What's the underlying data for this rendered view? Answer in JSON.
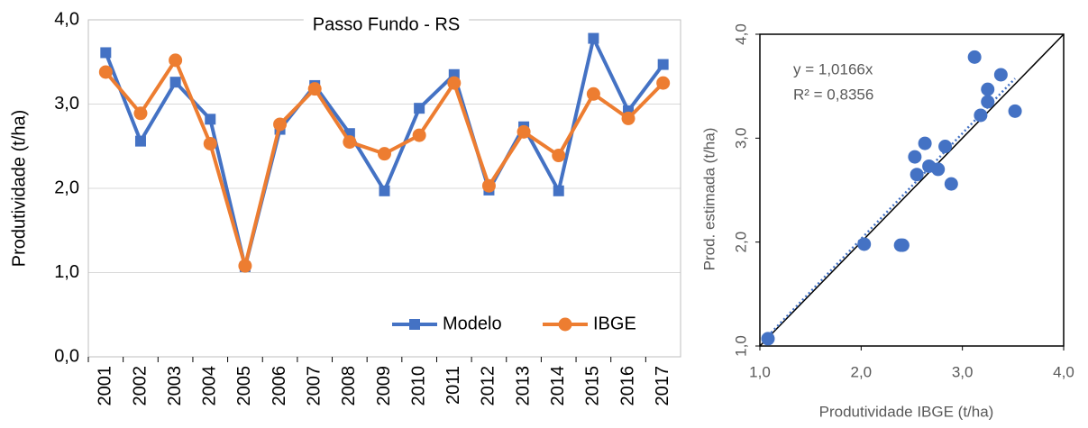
{
  "chart_data": [
    {
      "type": "line",
      "title": "Passo Fundo - RS",
      "y_label": "Produtividade (t/ha)",
      "categories": [
        "2001",
        "2002",
        "2003",
        "2004",
        "2005",
        "2006",
        "2007",
        "2008",
        "2009",
        "2010",
        "2011",
        "2012",
        "2013",
        "2014",
        "2015",
        "2016",
        "2017"
      ],
      "series": [
        {
          "name": "Modelo",
          "color": "#4472c4",
          "marker": "square",
          "values": [
            3.61,
            2.56,
            3.26,
            2.82,
            1.07,
            2.7,
            3.22,
            2.65,
            1.97,
            2.95,
            3.35,
            1.98,
            2.73,
            1.97,
            3.78,
            2.92,
            3.47
          ]
        },
        {
          "name": "IBGE",
          "color": "#ed7d31",
          "marker": "circle",
          "values": [
            3.38,
            2.89,
            3.52,
            2.53,
            1.08,
            2.76,
            3.18,
            2.55,
            2.41,
            2.63,
            3.25,
            2.03,
            2.67,
            2.39,
            3.12,
            2.83,
            3.25
          ]
        }
      ],
      "ylim": [
        0,
        4
      ],
      "yticks": [
        {
          "value": 0,
          "label": "0,0"
        },
        {
          "value": 1,
          "label": "1,0"
        },
        {
          "value": 2,
          "label": "2,0"
        },
        {
          "value": 3,
          "label": "3,0"
        },
        {
          "value": 4,
          "label": "4,0"
        }
      ],
      "grid": true,
      "legend": "bottom-right"
    },
    {
      "type": "scatter",
      "x_label": "Produtividade IBGE (t/ha)",
      "y_label": "Prod. estimada (t/ha)",
      "annotations": [
        "y = 1,0166x",
        "R² = 0,8356"
      ],
      "color": "#4472c4",
      "x": [
        3.38,
        2.89,
        3.52,
        2.53,
        1.08,
        2.76,
        3.18,
        2.55,
        2.41,
        2.63,
        3.25,
        2.03,
        2.67,
        2.39,
        3.12,
        2.83,
        3.25
      ],
      "values": [
        3.61,
        2.56,
        3.26,
        2.82,
        1.07,
        2.7,
        3.22,
        2.65,
        1.97,
        2.95,
        3.35,
        1.98,
        2.73,
        1.97,
        3.78,
        2.92,
        3.47
      ],
      "xlim": [
        1,
        4
      ],
      "ylim": [
        1,
        4
      ],
      "xticks": [
        {
          "value": 1,
          "label": "1,0"
        },
        {
          "value": 2,
          "label": "2,0"
        },
        {
          "value": 3,
          "label": "3,0"
        },
        {
          "value": 4,
          "label": "4,0"
        }
      ],
      "yticks": [
        {
          "value": 1,
          "label": "1,0"
        },
        {
          "value": 2,
          "label": "2,0"
        },
        {
          "value": 3,
          "label": "3,0"
        },
        {
          "value": 4,
          "label": "4,0"
        }
      ]
    }
  ]
}
